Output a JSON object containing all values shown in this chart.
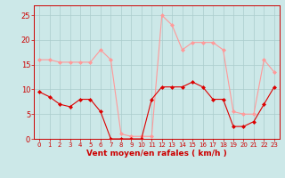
{
  "hours": [
    0,
    1,
    2,
    3,
    4,
    5,
    6,
    7,
    8,
    9,
    10,
    11,
    12,
    13,
    14,
    15,
    16,
    17,
    18,
    19,
    20,
    21,
    22,
    23
  ],
  "wind_avg": [
    9.5,
    8.5,
    7,
    6.5,
    8,
    8,
    5.5,
    0,
    0,
    0,
    0,
    8,
    10.5,
    10.5,
    10.5,
    11.5,
    10.5,
    8,
    8,
    2.5,
    2.5,
    3.5,
    7,
    10.5
  ],
  "wind_gust": [
    16,
    16,
    15.5,
    15.5,
    15.5,
    15.5,
    18,
    16,
    1,
    0.5,
    0.5,
    0.5,
    25,
    23,
    18,
    19.5,
    19.5,
    19.5,
    18,
    5.5,
    5,
    5,
    16,
    13.5
  ],
  "bg_color": "#cce8e8",
  "grid_color": "#aacccc",
  "line_avg_color": "#dd0000",
  "line_gust_color": "#ff9999",
  "xlabel": "Vent moyen/en rafales ( km/h )",
  "xlabel_color": "#cc0000",
  "tick_color": "#cc0000",
  "spine_color": "#cc0000",
  "ylim": [
    0,
    27
  ],
  "yticks": [
    0,
    5,
    10,
    15,
    20,
    25
  ],
  "marker": "D",
  "marker_size": 2.0,
  "linewidth": 0.8
}
